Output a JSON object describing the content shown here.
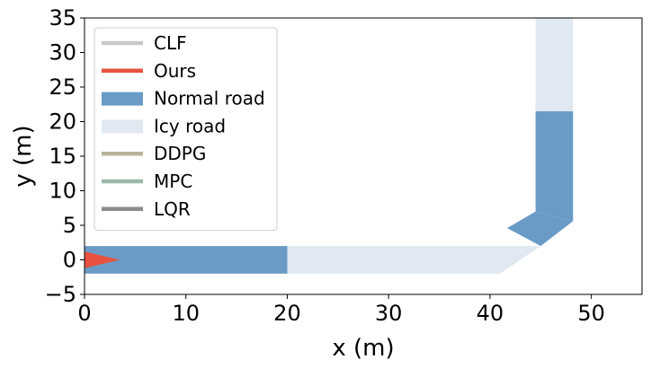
{
  "chart_data": {
    "type": "area",
    "title": "",
    "xlabel": "x (m)",
    "ylabel": "y (m)",
    "xlim": [
      0,
      55
    ],
    "ylim": [
      -5,
      35
    ],
    "grid": false,
    "xticks": [
      0,
      10,
      20,
      30,
      40,
      50
    ],
    "yticks": [
      -5,
      0,
      5,
      10,
      15,
      20,
      25,
      30,
      35
    ],
    "legend": {
      "placement": "upper-left",
      "entries": [
        {
          "label": "CLF",
          "style": "line",
          "color": "#c8c8c8"
        },
        {
          "label": "Ours",
          "style": "line",
          "color": "#e8523f"
        },
        {
          "label": "Normal road",
          "style": "patch",
          "color": "#6a9bc6"
        },
        {
          "label": "Icy road",
          "style": "patch",
          "color": "#e0e8f2"
        },
        {
          "label": "DDPG",
          "style": "line",
          "color": "#b8b29a"
        },
        {
          "label": "MPC",
          "style": "line",
          "color": "#9bb8a8"
        },
        {
          "label": "LQR",
          "style": "line",
          "color": "#8f8a8f"
        }
      ]
    },
    "road_segments": [
      {
        "surface": "Normal road",
        "color": "#6a9bc6",
        "polygon": [
          [
            0,
            -2
          ],
          [
            20,
            -2
          ],
          [
            20,
            2
          ],
          [
            0,
            2
          ]
        ]
      },
      {
        "surface": "Icy road",
        "color": "#e0e8f2",
        "polygon": [
          [
            20,
            -2
          ],
          [
            41,
            -2
          ],
          [
            45,
            2
          ],
          [
            39,
            2
          ],
          [
            20,
            2
          ]
        ]
      },
      {
        "surface": "Normal road",
        "color": "#6a9bc6",
        "polygon": [
          [
            41.7,
            4.6
          ],
          [
            44.5,
            7
          ],
          [
            48.2,
            5.6
          ],
          [
            45,
            2
          ]
        ]
      },
      {
        "surface": "Normal road",
        "color": "#6a9bc6",
        "polygon": [
          [
            44.5,
            7
          ],
          [
            44.5,
            21.5
          ],
          [
            48.2,
            21.5
          ],
          [
            48.2,
            5.6
          ]
        ]
      },
      {
        "surface": "Icy road",
        "color": "#e0e8f2",
        "polygon": [
          [
            44.5,
            21.5
          ],
          [
            44.5,
            35
          ],
          [
            48.2,
            35
          ],
          [
            48.2,
            21.5
          ]
        ]
      }
    ],
    "vehicle": {
      "label": "Ours",
      "color": "#e8523f",
      "polygon": [
        [
          0,
          -1.2
        ],
        [
          3.5,
          0
        ],
        [
          0,
          1.2
        ]
      ]
    }
  }
}
